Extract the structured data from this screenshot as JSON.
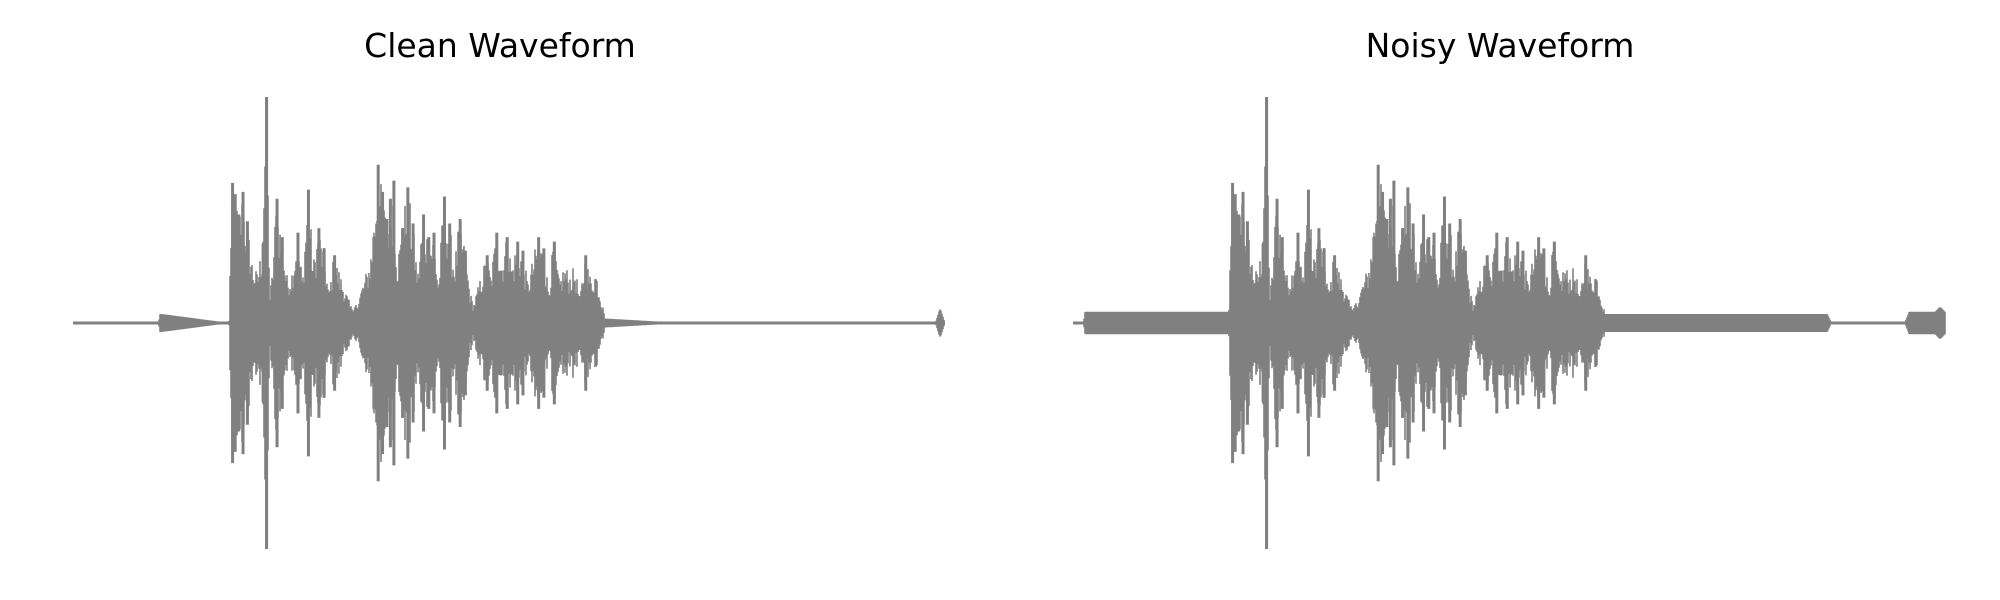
{
  "chart_data": [
    {
      "type": "line",
      "title": "Clean Waveform",
      "xlabel": "",
      "ylabel": "",
      "axis_visible": false,
      "grid": false,
      "ylim": [
        -1,
        1
      ],
      "line_color": "#808080",
      "envelope": {
        "x": [
          0.0,
          0.099,
          0.101,
          0.18,
          0.183,
          0.186,
          0.19,
          0.195,
          0.2,
          0.206,
          0.212,
          0.218,
          0.222,
          0.226,
          0.23,
          0.234,
          0.24,
          0.246,
          0.252,
          0.258,
          0.264,
          0.27,
          0.276,
          0.282,
          0.288,
          0.294,
          0.3,
          0.32,
          0.322,
          0.34,
          0.345,
          0.35,
          0.355,
          0.36,
          0.364,
          0.368,
          0.372,
          0.378,
          0.384,
          0.39,
          0.396,
          0.402,
          0.408,
          0.414,
          0.42,
          0.426,
          0.432,
          0.438,
          0.444,
          0.45,
          0.456,
          0.46,
          0.475,
          0.48,
          0.486,
          0.492,
          0.498,
          0.504,
          0.51,
          0.516,
          0.522,
          0.528,
          0.534,
          0.54,
          0.546,
          0.552,
          0.558,
          0.564,
          0.57,
          0.576,
          0.582,
          0.588,
          0.594,
          0.6,
          0.61,
          0.7,
          0.99,
          0.995,
          1.0
        ],
        "amplitude": [
          0.0,
          0.0,
          0.04,
          0.0,
          0.62,
          0.57,
          0.48,
          0.58,
          0.45,
          0.27,
          0.22,
          0.35,
          1.0,
          0.1,
          0.24,
          0.55,
          0.38,
          0.2,
          0.24,
          0.4,
          0.17,
          0.59,
          0.25,
          0.42,
          0.33,
          0.12,
          0.3,
          0.06,
          0.04,
          0.26,
          0.38,
          0.7,
          0.58,
          0.46,
          0.55,
          0.63,
          0.26,
          0.42,
          0.6,
          0.44,
          0.2,
          0.48,
          0.38,
          0.4,
          0.15,
          0.56,
          0.44,
          0.25,
          0.46,
          0.32,
          0.13,
          0.08,
          0.3,
          0.2,
          0.4,
          0.28,
          0.38,
          0.26,
          0.36,
          0.32,
          0.17,
          0.28,
          0.38,
          0.33,
          0.14,
          0.36,
          0.18,
          0.26,
          0.22,
          0.25,
          0.1,
          0.3,
          0.2,
          0.24,
          0.02,
          0.0,
          0.0,
          0.06,
          0.0
        ]
      }
    },
    {
      "type": "line",
      "title": "Noisy Waveform",
      "xlabel": "",
      "ylabel": "",
      "axis_visible": false,
      "grid": false,
      "ylim": [
        -1,
        1
      ],
      "line_color": "#808080",
      "noise_floor": [
        {
          "x_start": 0.015,
          "x_end": 0.185,
          "amplitude": 0.05
        },
        {
          "x_start": 0.63,
          "x_end": 0.865,
          "amplitude": 0.04
        },
        {
          "x_start": 0.96,
          "x_end": 1.0,
          "amplitude": 0.05
        }
      ],
      "envelope": {
        "x": [
          0.0,
          0.013,
          0.015,
          0.18,
          0.183,
          0.186,
          0.19,
          0.195,
          0.2,
          0.206,
          0.212,
          0.218,
          0.222,
          0.226,
          0.23,
          0.234,
          0.24,
          0.246,
          0.252,
          0.258,
          0.264,
          0.27,
          0.276,
          0.282,
          0.288,
          0.294,
          0.3,
          0.32,
          0.322,
          0.34,
          0.345,
          0.35,
          0.355,
          0.36,
          0.364,
          0.368,
          0.372,
          0.378,
          0.384,
          0.39,
          0.396,
          0.402,
          0.408,
          0.414,
          0.42,
          0.426,
          0.432,
          0.438,
          0.444,
          0.45,
          0.456,
          0.46,
          0.475,
          0.48,
          0.486,
          0.492,
          0.498,
          0.504,
          0.51,
          0.516,
          0.522,
          0.528,
          0.534,
          0.54,
          0.546,
          0.552,
          0.558,
          0.564,
          0.57,
          0.576,
          0.582,
          0.588,
          0.594,
          0.6,
          0.61,
          0.7,
          0.865,
          0.87,
          0.955,
          0.96,
          0.99,
          0.995,
          1.0
        ],
        "amplitude": [
          0.0,
          0.0,
          0.05,
          0.05,
          0.62,
          0.57,
          0.48,
          0.58,
          0.45,
          0.27,
          0.22,
          0.35,
          1.0,
          0.1,
          0.24,
          0.55,
          0.38,
          0.2,
          0.24,
          0.4,
          0.17,
          0.59,
          0.25,
          0.42,
          0.33,
          0.12,
          0.3,
          0.06,
          0.05,
          0.26,
          0.38,
          0.7,
          0.58,
          0.46,
          0.55,
          0.63,
          0.26,
          0.42,
          0.6,
          0.44,
          0.2,
          0.48,
          0.38,
          0.4,
          0.15,
          0.56,
          0.44,
          0.25,
          0.46,
          0.32,
          0.13,
          0.08,
          0.3,
          0.2,
          0.4,
          0.28,
          0.38,
          0.26,
          0.36,
          0.32,
          0.17,
          0.28,
          0.38,
          0.33,
          0.14,
          0.36,
          0.18,
          0.26,
          0.22,
          0.25,
          0.1,
          0.3,
          0.2,
          0.24,
          0.04,
          0.04,
          0.04,
          0.0,
          0.0,
          0.05,
          0.05,
          0.07,
          0.05
        ]
      }
    }
  ]
}
